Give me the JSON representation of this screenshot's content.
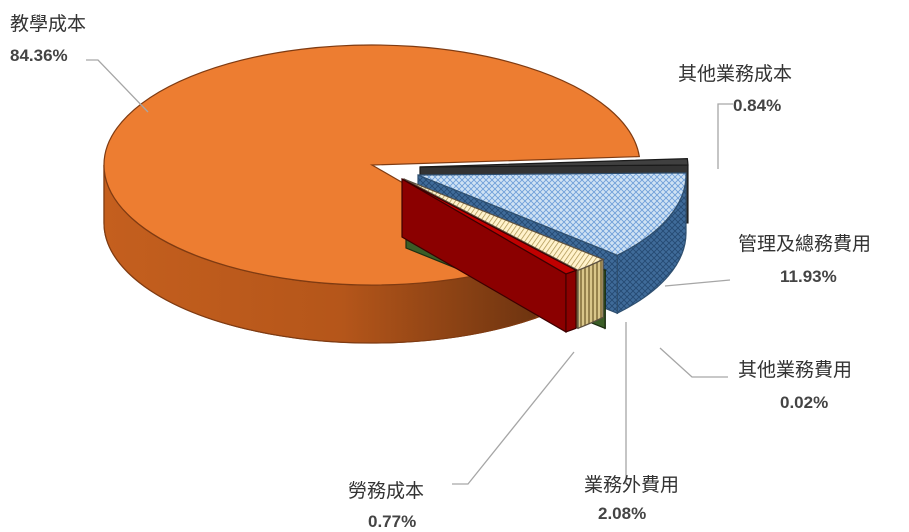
{
  "chart_data": {
    "type": "pie",
    "style": "3d-exploded",
    "title": "",
    "legend": "none",
    "slices": [
      {
        "label": "教學成本",
        "value": 84.36,
        "value_label": "84.36%",
        "color": "#ed7d31",
        "fill": "solid"
      },
      {
        "label": "其他業務成本",
        "value": 0.84,
        "value_label": "0.84%",
        "color": "#404040",
        "fill": "solid"
      },
      {
        "label": "管理及總務費用",
        "value": 11.93,
        "value_label": "11.93%",
        "color": "#bdd7ee",
        "fill": "crosshatch"
      },
      {
        "label": "其他業務費用",
        "value": 0.02,
        "value_label": "0.02%",
        "color": "#375623",
        "fill": "solid"
      },
      {
        "label": "業務外費用",
        "value": 2.08,
        "value_label": "2.08%",
        "color": "#fff2cc",
        "fill": "stripes"
      },
      {
        "label": "勞務成本",
        "value": 0.77,
        "value_label": "0.77%",
        "color": "#c00000",
        "fill": "solid"
      }
    ]
  }
}
